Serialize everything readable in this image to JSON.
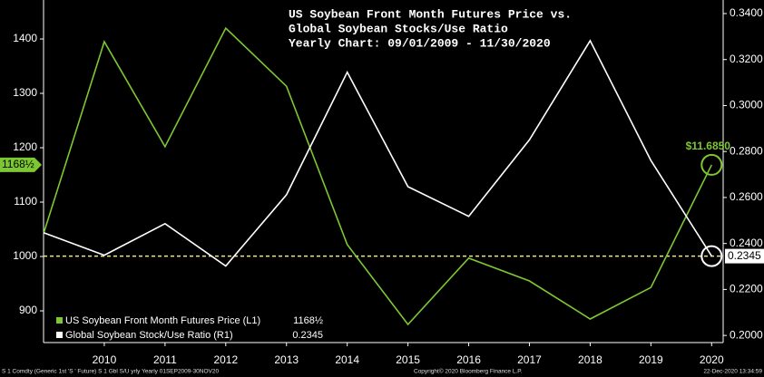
{
  "chart_data": {
    "type": "line",
    "title": [
      "US Soybean Front Month Futures Price vs.",
      "Global Soybean Stocks/Use Ratio",
      "Yearly Chart:  09/01/2009 - 11/30/2020"
    ],
    "x": [
      2009,
      2010,
      2011,
      2012,
      2013,
      2014,
      2015,
      2016,
      2017,
      2018,
      2019,
      2020
    ],
    "xlim": [
      2009,
      2020.19
    ],
    "xticks": [
      2010,
      2011,
      2012,
      2013,
      2014,
      2015,
      2016,
      2017,
      2018,
      2019,
      2020
    ],
    "ylim": [
      841.7,
      1471.7
    ],
    "yticks": [
      900,
      1000,
      1100,
      1200,
      1300,
      1400
    ],
    "y2lim": [
      0.1969,
      0.3459
    ],
    "y2ticks": [
      {
        "value": 0.2,
        "label": "0.2000"
      },
      {
        "value": 0.22,
        "label": "0.2200"
      },
      {
        "value": 0.24,
        "label": "0.2400"
      },
      {
        "value": 0.26,
        "label": "0.2600"
      },
      {
        "value": 0.28,
        "label": "0.2800"
      },
      {
        "value": 0.3,
        "label": "0.3000"
      },
      {
        "value": 0.32,
        "label": "0.3200"
      },
      {
        "value": 0.34,
        "label": "0.3400"
      }
    ],
    "series": [
      {
        "name": "US Soybean Front Month Futures Price (L1)",
        "color": "#7dc832",
        "axis": "y",
        "values": [
          1042,
          1395,
          1202,
          1420,
          1313,
          1022,
          875,
          997,
          955,
          885,
          943,
          1168.5
        ],
        "axis_label": "1168½",
        "end_label": "$11.6850"
      },
      {
        "name": "Global Soybean Stock/Use Ratio (R1)",
        "color": "#ffffff",
        "axis": "y2",
        "values": [
          0.2447,
          0.2349,
          0.2486,
          0.2302,
          0.2612,
          0.3145,
          0.2647,
          0.2518,
          0.2851,
          0.3282,
          0.2761,
          0.2345
        ],
        "axis_label": "0.2345"
      }
    ],
    "reference_line_color": "#f0e68c",
    "footer": [
      "S 1 Comdty (Generic 1st 'S ' Future) S 1 Gbl S/U yrly  Yearly 01SEP2009-30NOV20",
      "Copyright© 2020 Bloomberg Finance L.P.",
      "22-Dec-2020 13:34:59"
    ]
  }
}
